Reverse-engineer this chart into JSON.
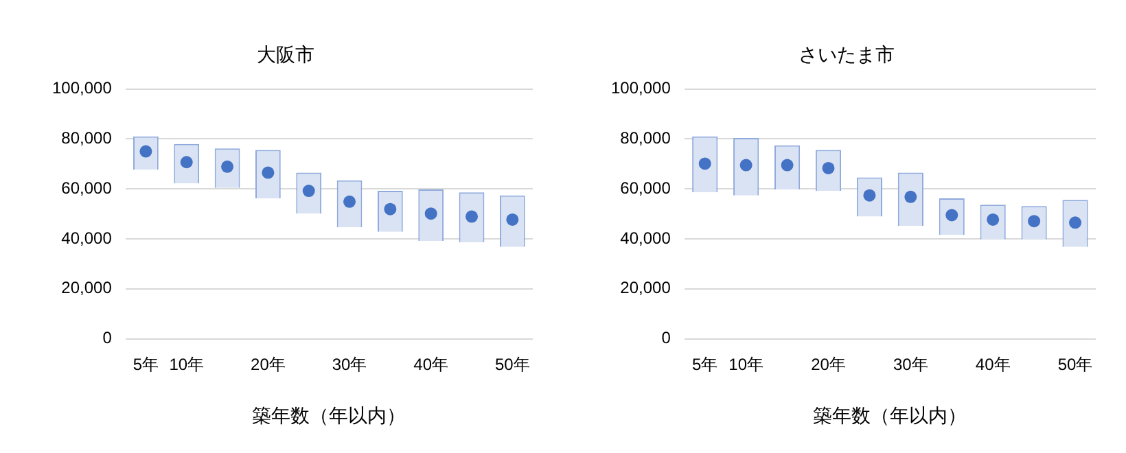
{
  "chart_data": [
    {
      "type": "bar",
      "title": "大阪市",
      "xlabel": "築年数（年以内）",
      "categories": [
        "5年",
        "10年",
        null,
        "20年",
        null,
        "30年",
        null,
        "40年",
        null,
        "50年"
      ],
      "ylim": [
        0,
        100000
      ],
      "yticks": [
        {
          "value": 0,
          "label": "0"
        },
        {
          "value": 20000,
          "label": "20,000"
        },
        {
          "value": 40000,
          "label": "40,000"
        },
        {
          "value": 60000,
          "label": "60,000"
        },
        {
          "value": 80000,
          "label": "80,000"
        },
        {
          "value": 100000,
          "label": "100,000"
        }
      ],
      "grid": "y",
      "legend": false,
      "marker": "circle",
      "series": [
        {
          "color": "#dae3f3",
          "base": [
            67700,
            62200,
            60400,
            56200,
            50100,
            44600,
            42800,
            39200,
            38600,
            36800
          ],
          "values": [
            13300,
            15800,
            15800,
            19400,
            16400,
            18800,
            16400,
            20600,
            20000,
            20600
          ]
        },
        {
          "type": "scatter",
          "color": "#4472c4",
          "values": [
            75000,
            70700,
            68900,
            66500,
            59200,
            54900,
            51900,
            50100,
            48900,
            47700
          ]
        }
      ]
    },
    {
      "type": "bar",
      "title": "さいたま市",
      "xlabel": "築年数（年以内）",
      "categories": [
        "5年",
        "10年",
        null,
        "20年",
        null,
        "30年",
        null,
        "40年",
        null,
        "50年"
      ],
      "ylim": [
        0,
        100000
      ],
      "yticks": [
        {
          "value": 0,
          "label": "0"
        },
        {
          "value": 20000,
          "label": "20,000"
        },
        {
          "value": 40000,
          "label": "40,000"
        },
        {
          "value": 60000,
          "label": "60,000"
        },
        {
          "value": 80000,
          "label": "80,000"
        },
        {
          "value": 100000,
          "label": "100,000"
        }
      ],
      "grid": "y",
      "legend": false,
      "marker": "circle",
      "series": [
        {
          "color": "#dae3f3",
          "base": [
            58600,
            57400,
            59800,
            59200,
            48900,
            45200,
            41600,
            39800,
            39800,
            36800
          ],
          "values": [
            22400,
            23000,
            17600,
            16400,
            15700,
            21300,
            14600,
            13900,
            13300,
            18800
          ]
        },
        {
          "type": "scatter",
          "color": "#4472c4",
          "values": [
            70100,
            69500,
            69500,
            68300,
            57400,
            56800,
            49500,
            47700,
            47100,
            46500
          ]
        }
      ]
    }
  ]
}
